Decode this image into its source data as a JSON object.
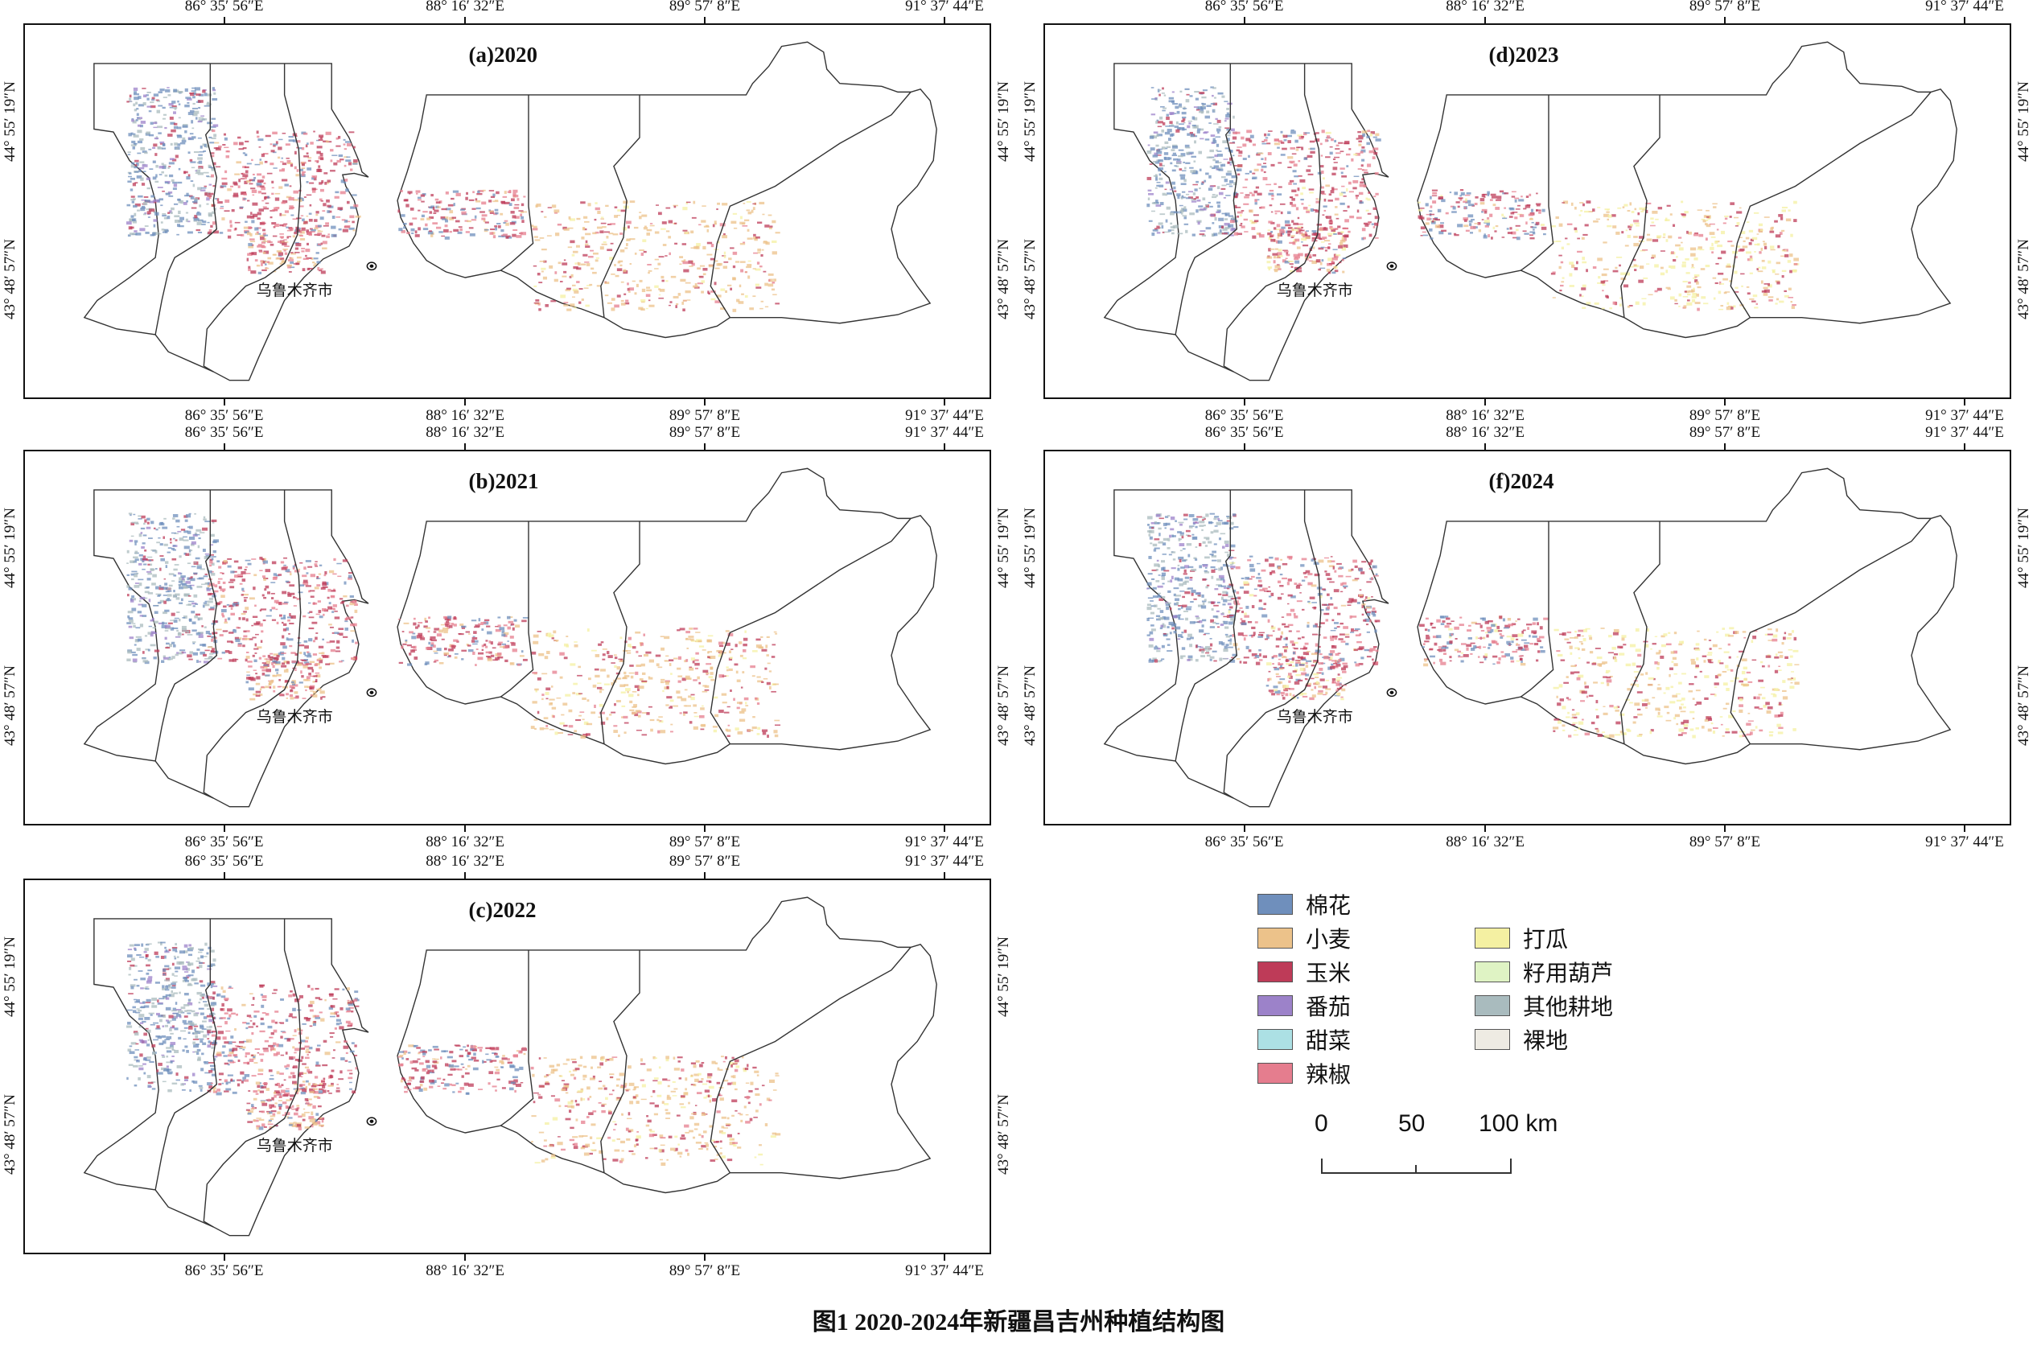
{
  "panels": [
    {
      "id": "a",
      "title": "(a)2020",
      "seed": 11
    },
    {
      "id": "b",
      "title": "(b)2021",
      "seed": 23
    },
    {
      "id": "c",
      "title": "(c)2022",
      "seed": 37
    },
    {
      "id": "d",
      "title": "(d)2023",
      "seed": 41
    },
    {
      "id": "f",
      "title": "(f)2024",
      "seed": 59
    }
  ],
  "axes": {
    "lon_labels": [
      "86° 35′ 56″E",
      "88° 16′ 32″E",
      "89° 57′ 8″E",
      "91° 37′ 44″E"
    ],
    "lat_labels": [
      "44° 55′ 19″N",
      "43° 48′ 57″N"
    ]
  },
  "city_label": "乌鲁木齐市",
  "legend": {
    "items": [
      {
        "label": "棉花",
        "color": "#6f8fbc"
      },
      {
        "label": "小麦",
        "color": "#ecc28a"
      },
      {
        "label": "玉米",
        "color": "#be3b58"
      },
      {
        "label": "番茄",
        "color": "#9c82c9"
      },
      {
        "label": "甜菜",
        "color": "#ace0e4"
      },
      {
        "label": "辣椒",
        "color": "#e57d8e"
      },
      {
        "label": "打瓜",
        "color": "#f4f0a2"
      },
      {
        "label": "籽用葫芦",
        "color": "#dff3c4"
      },
      {
        "label": "其他耕地",
        "color": "#a9bbbe"
      },
      {
        "label": "裸地",
        "color": "#eeebe3"
      }
    ]
  },
  "scale_bar": {
    "labels": [
      "0",
      "50",
      "100 km"
    ]
  },
  "caption": "图1 2020-2024年新疆昌吉州种植结构图"
}
